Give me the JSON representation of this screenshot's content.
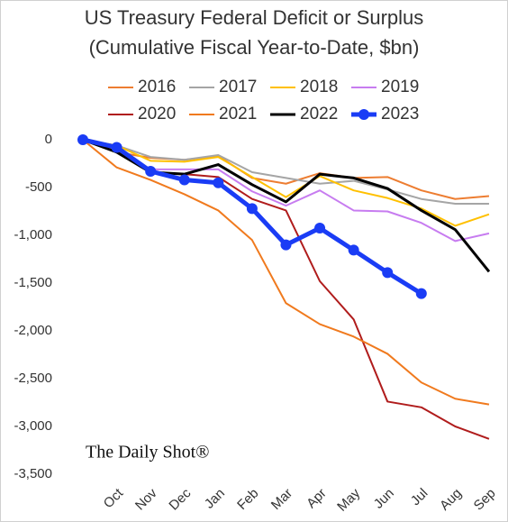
{
  "chart_data": {
    "type": "line",
    "title": "US Treasury Federal Deficit or Surplus",
    "subtitle": "(Cumulative Fiscal Year-to-Date, $bn)",
    "watermark": "The Daily Shot®",
    "categories": [
      null,
      "Oct",
      "Nov",
      "Dec",
      "Jan",
      "Feb",
      "Mar",
      "Apr",
      "May",
      "Jun",
      "Jul",
      "Aug",
      "Sep"
    ],
    "ylim": [
      -3500,
      0
    ],
    "yticks": [
      0,
      -500,
      {
        "value": -1000,
        "label": "-1,000"
      },
      {
        "value": -1500,
        "label": "-1,500"
      },
      {
        "value": -2000,
        "label": "-2,000"
      },
      {
        "value": -2500,
        "label": "-2,500"
      },
      {
        "value": -3000,
        "label": "-3,000"
      },
      {
        "value": -3500,
        "label": "-3,500"
      }
    ],
    "grid": false,
    "series": [
      {
        "name": "2016",
        "color": "#ed7d31",
        "line_width": 2,
        "values": [
          0,
          -130,
          -190,
          -210,
          -170,
          -400,
          -460,
          -350,
          -400,
          -390,
          -530,
          -620,
          -590
        ]
      },
      {
        "name": "2017",
        "color": "#a5a5a5",
        "line_width": 2,
        "values": [
          0,
          -60,
          -180,
          -210,
          -160,
          -340,
          -400,
          -460,
          -430,
          -520,
          -620,
          -670,
          -670
        ]
      },
      {
        "name": "2018",
        "color": "#ffc000",
        "line_width": 2,
        "values": [
          0,
          -60,
          -220,
          -230,
          -180,
          -390,
          -600,
          -380,
          -530,
          -610,
          -720,
          -900,
          -780
        ]
      },
      {
        "name": "2019",
        "color": "#c77cf0",
        "line_width": 2,
        "values": [
          0,
          -100,
          -310,
          -310,
          -310,
          -540,
          -690,
          -530,
          -740,
          -750,
          -870,
          -1060,
          -980
        ]
      },
      {
        "name": "2020",
        "color": "#b01c1c",
        "line_width": 2,
        "values": [
          0,
          -130,
          -340,
          -360,
          -390,
          -620,
          -740,
          -1480,
          -1880,
          -2740,
          -2800,
          -3000,
          -3130
        ]
      },
      {
        "name": "2021",
        "color": "#f07a1e",
        "line_width": 2,
        "values": [
          0,
          -290,
          -420,
          -570,
          -740,
          -1050,
          -1710,
          -1930,
          -2060,
          -2240,
          -2540,
          -2710,
          -2770
        ]
      },
      {
        "name": "2022",
        "color": "#000000",
        "line_width": 3,
        "values": [
          0,
          -130,
          -340,
          -360,
          -260,
          -470,
          -650,
          -360,
          -400,
          -510,
          -740,
          -940,
          -1380
        ]
      },
      {
        "name": "2023",
        "color": "#1a3cf5",
        "line_width": 5,
        "markers": true,
        "values": [
          0,
          -80,
          -330,
          -420,
          -450,
          -720,
          -1100,
          -925,
          -1155,
          -1390,
          -1610,
          null,
          null
        ]
      }
    ]
  }
}
